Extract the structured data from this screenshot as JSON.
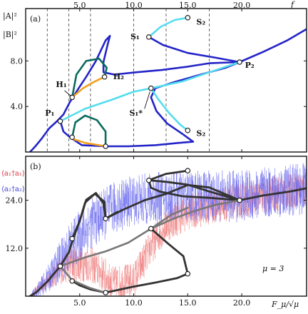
{
  "chart_data": [
    {
      "type": "line",
      "panel_label": "(a)",
      "ylabel_top": "|A|²",
      "ylabel_bottom": "|B|²",
      "xlabel": "f",
      "xlim": [
        0,
        26
      ],
      "ylim": [
        0,
        12.6
      ],
      "x_ticks": [
        "5.0",
        "10.0",
        "15.0",
        "20.0"
      ],
      "x_tick_values": [
        5,
        10,
        15,
        20
      ],
      "y_ticks": [
        "4.0",
        "8.0"
      ],
      "y_tick_values": [
        4,
        8
      ],
      "grid": false,
      "vlines": [
        2.0,
        4.0,
        6.0,
        10.0,
        13.0,
        17.0
      ],
      "colors": {
        "main": "#2424c8",
        "secondary": "#55ddee",
        "hopf": "#0b6b5e",
        "unstable": "#f0a020"
      },
      "series": [
        {
          "style": "main",
          "values": [
            [
              0.4,
              0
            ],
            [
              0.9,
              0.5
            ],
            [
              1.5,
              1.2
            ],
            [
              2.2,
              2.1
            ],
            [
              2.9,
              2.7
            ],
            [
              3.5,
              3.3
            ],
            [
              4.1,
              4.4
            ],
            [
              4.9,
              5.6
            ],
            [
              5.6,
              6.6
            ],
            [
              6.5,
              8.0
            ],
            [
              7.4,
              9.8
            ],
            [
              7.8,
              10.2
            ],
            [
              7.6,
              9.5
            ],
            [
              7.2,
              7.9
            ],
            [
              7.2,
              7.0
            ],
            [
              8.2,
              6.8
            ],
            [
              10.2,
              7.0
            ],
            [
              12.6,
              7.2
            ],
            [
              15.0,
              7.5
            ],
            [
              17.0,
              7.8
            ],
            [
              19.8,
              7.9
            ],
            [
              22.0,
              8.8
            ],
            [
              24.2,
              9.8
            ],
            [
              26.0,
              10.8
            ]
          ]
        },
        {
          "style": "main",
          "values": [
            [
              11.4,
              10.1
            ],
            [
              12.7,
              9.4
            ],
            [
              15.0,
              8.7
            ],
            [
              17.5,
              8.3
            ],
            [
              19.8,
              7.9
            ],
            [
              18.5,
              7.4
            ],
            [
              16.2,
              6.8
            ],
            [
              13.6,
              6.1
            ],
            [
              12.0,
              5.6
            ],
            [
              11.6,
              4.8
            ],
            [
              12.1,
              3.6
            ],
            [
              13.1,
              2.5
            ],
            [
              14.5,
              1.6
            ],
            [
              15.5,
              0.9
            ],
            [
              14.2,
              0.8
            ],
            [
              12.0,
              0.6
            ],
            [
              9.5,
              0.5
            ],
            [
              7.4,
              0.5
            ],
            [
              5.2,
              0.6
            ],
            [
              4.1,
              1.3
            ],
            [
              3.5,
              1.8
            ],
            [
              3.2,
              2.7
            ]
          ]
        },
        {
          "style": "secondary",
          "values": [
            [
              3.2,
              2.7
            ],
            [
              5.5,
              3.8
            ],
            [
              8.0,
              4.6
            ],
            [
              10.0,
              5.3
            ],
            [
              11.6,
              5.6
            ],
            [
              14.5,
              6.2
            ],
            [
              17.0,
              7.0
            ],
            [
              19.8,
              7.9
            ]
          ]
        },
        {
          "style": "secondary",
          "values": [
            [
              11.6,
              5.6
            ],
            [
              12.3,
              4.6
            ],
            [
              13.3,
              3.4
            ],
            [
              14.3,
              2.4
            ],
            [
              15.0,
              1.9
            ]
          ]
        },
        {
          "style": "secondary",
          "values": [
            [
              11.4,
              10.1
            ],
            [
              12.5,
              11.0
            ],
            [
              13.8,
              11.6
            ],
            [
              15.0,
              11.8
            ]
          ]
        },
        {
          "style": "hopf",
          "values": [
            [
              4.3,
              4.8
            ],
            [
              4.7,
              6.8
            ],
            [
              5.6,
              8.0
            ],
            [
              6.8,
              8.2
            ],
            [
              7.5,
              7.4
            ],
            [
              7.3,
              6.6
            ]
          ]
        },
        {
          "style": "hopf",
          "values": [
            [
              4.3,
              1.3
            ],
            [
              4.6,
              2.6
            ],
            [
              5.5,
              3.2
            ],
            [
              6.6,
              2.8
            ],
            [
              7.4,
              1.8
            ],
            [
              7.4,
              0.6
            ]
          ]
        },
        {
          "style": "unstable",
          "values": [
            [
              4.3,
              4.8
            ],
            [
              5.3,
              5.6
            ],
            [
              6.2,
              6.1
            ],
            [
              7.3,
              6.6
            ]
          ]
        },
        {
          "style": "unstable",
          "values": [
            [
              4.2,
              1.2
            ],
            [
              5.5,
              0.8
            ],
            [
              7.4,
              0.5
            ]
          ]
        }
      ],
      "markers": [
        [
          4.3,
          4.8
        ],
        [
          7.3,
          6.6
        ],
        [
          3.2,
          2.7
        ],
        [
          11.6,
          5.6
        ],
        [
          11.4,
          10.1
        ],
        [
          15.0,
          11.8
        ],
        [
          19.8,
          7.9
        ],
        [
          15.0,
          1.9
        ],
        [
          4.3,
          1.3
        ],
        [
          7.4,
          0.5
        ]
      ],
      "annotations": [
        {
          "text": "H₁",
          "x": 2.8,
          "y": 5.7
        },
        {
          "text": "H₂",
          "x": 8.1,
          "y": 6.4
        },
        {
          "text": "P₁",
          "x": 1.8,
          "y": 3.2
        },
        {
          "text": "P₂",
          "x": 20.3,
          "y": 7.4
        },
        {
          "text": "S₁",
          "x": 9.7,
          "y": 9.9
        },
        {
          "text": "S₂",
          "x": 15.8,
          "y": 11.2
        },
        {
          "text": "S₁*",
          "x": 9.6,
          "y": 3.2
        },
        {
          "text": "S₂",
          "x": 15.8,
          "y": 1.4
        }
      ]
    },
    {
      "type": "line",
      "panel_label": "(b)",
      "legend": [
        {
          "text": "⟨a₁†a₁⟩",
          "color": "#e24b55"
        },
        {
          "text": "⟨a₂†a₂⟩",
          "color": "#4c4ce0"
        }
      ],
      "xlabel": "F_μ/√μ",
      "xlim": [
        0,
        26
      ],
      "ylim": [
        0,
        35
      ],
      "x_ticks": [
        "5.0",
        "10.0",
        "15.0",
        "20.0"
      ],
      "x_tick_values": [
        5,
        10,
        15,
        20
      ],
      "y_ticks": [
        "12.0",
        "24.0"
      ],
      "y_tick_values": [
        12,
        24
      ],
      "grid": false,
      "mu_label": "μ = 3",
      "colors": {
        "dark": "#333333",
        "mid": "#777777",
        "noise_a1": "#ee7777",
        "noise_a2": "#6262ee"
      },
      "series": [
        {
          "style": "dark",
          "values": [
            [
              0.4,
              0
            ],
            [
              1.0,
              1.0
            ],
            [
              2.0,
              3.6
            ],
            [
              3.2,
              7.5
            ],
            [
              4.0,
              11.0
            ],
            [
              4.4,
              14.4
            ],
            [
              5.0,
              18.8
            ],
            [
              5.5,
              23.4
            ],
            [
              6.4,
              25.6
            ],
            [
              7.3,
              23.6
            ],
            [
              7.4,
              19.4
            ],
            [
              9.0,
              21.6
            ],
            [
              11.0,
              24.0
            ],
            [
              13.0,
              25.6
            ],
            [
              15.0,
              27.8
            ],
            [
              17.0,
              27.2
            ],
            [
              19.8,
              24.0
            ],
            [
              22.0,
              25.2
            ],
            [
              24.5,
              26.2
            ],
            [
              26.0,
              27.0
            ]
          ]
        },
        {
          "style": "dark",
          "values": [
            [
              11.4,
              29.0
            ],
            [
              13.0,
              28.6
            ],
            [
              15.0,
              27.9
            ],
            [
              17.0,
              26.2
            ],
            [
              19.8,
              24.0
            ],
            [
              17.0,
              24.6
            ],
            [
              14.5,
              25.0
            ],
            [
              12.5,
              26.1
            ],
            [
              11.6,
              27.1
            ],
            [
              11.4,
              29.0
            ],
            [
              13.0,
              30.6
            ],
            [
              15.0,
              31.4
            ]
          ]
        },
        {
          "style": "dark",
          "values": [
            [
              11.6,
              16.9
            ],
            [
              13.2,
              13.1
            ],
            [
              14.6,
              10.0
            ],
            [
              15.0,
              5.6
            ],
            [
              14.0,
              4.5
            ],
            [
              12.0,
              3.4
            ],
            [
              10.0,
              2.4
            ],
            [
              7.4,
              0.9
            ],
            [
              6.0,
              1.7
            ],
            [
              5.0,
              2.7
            ],
            [
              4.3,
              3.8
            ]
          ]
        },
        {
          "style": "mid",
          "values": [
            [
              3.2,
              7.5
            ],
            [
              5.5,
              9.7
            ],
            [
              7.4,
              11.2
            ],
            [
              9.5,
              13.4
            ],
            [
              11.6,
              16.9
            ],
            [
              13.6,
              19.3
            ],
            [
              15.5,
              21.2
            ],
            [
              17.5,
              22.8
            ],
            [
              19.8,
              24.0
            ]
          ]
        },
        {
          "style": "mid",
          "values": [
            [
              3.2,
              7.5
            ],
            [
              4.3,
              4.0
            ],
            [
              6.0,
              2.0
            ],
            [
              7.4,
              0.9
            ]
          ]
        },
        {
          "style": "mid",
          "values": [
            [
              11.6,
              16.9
            ],
            [
              13.5,
              20.4
            ],
            [
              15.0,
              22.1
            ]
          ]
        },
        {
          "style": "dark",
          "values": [
            [
              4.3,
              14.4
            ],
            [
              5.0,
              18.8
            ],
            [
              5.6,
              24.1
            ],
            [
              6.5,
              25.8
            ],
            [
              7.2,
              23.2
            ],
            [
              7.4,
              19.4
            ],
            [
              8.5,
              21.1
            ]
          ]
        }
      ],
      "markers": [
        [
          4.3,
          14.4
        ],
        [
          7.4,
          19.4
        ],
        [
          3.2,
          7.5
        ],
        [
          11.6,
          16.9
        ],
        [
          11.4,
          29.0
        ],
        [
          15.0,
          31.4
        ],
        [
          19.8,
          24.0
        ],
        [
          15.0,
          5.6
        ],
        [
          4.3,
          3.8
        ],
        [
          7.4,
          0.9
        ]
      ]
    }
  ]
}
